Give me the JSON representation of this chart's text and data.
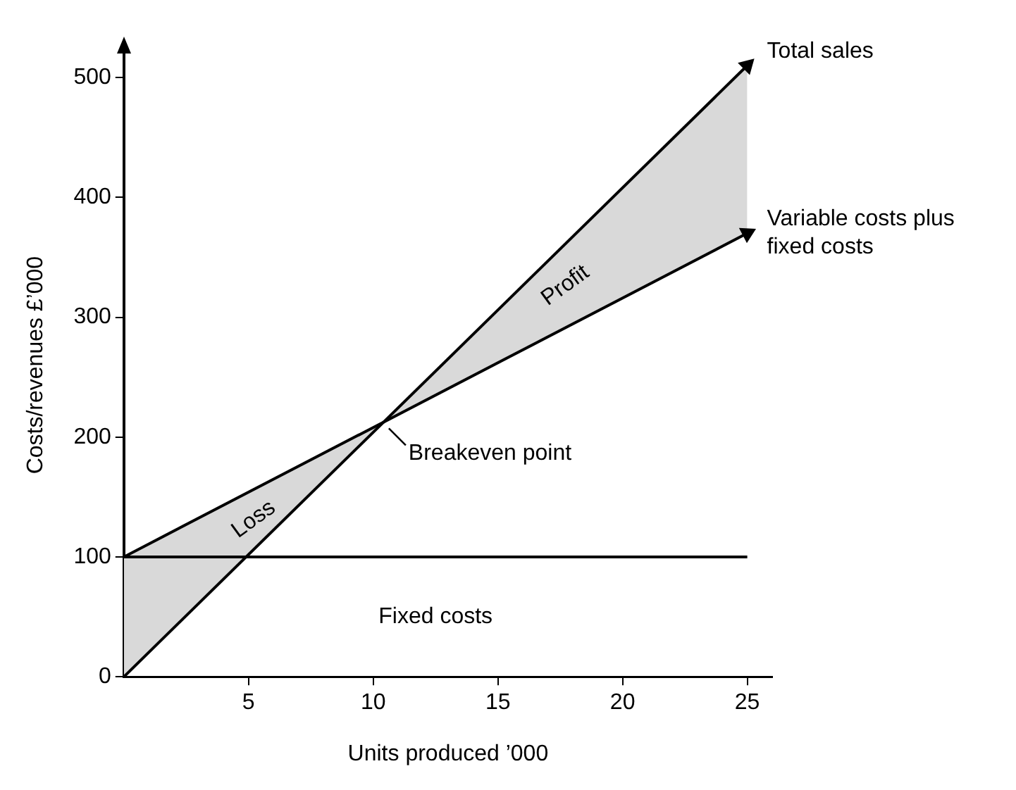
{
  "chart_data": {
    "type": "line",
    "xlabel": "Units produced ’000",
    "ylabel": "Costs/revenues £’000",
    "x": [
      0,
      25
    ],
    "series": [
      {
        "name": "Total sales",
        "color": "#000000",
        "values": [
          0,
          510
        ]
      },
      {
        "name": "Variable costs plus fixed costs",
        "color": "#000000",
        "values": [
          100,
          370
        ]
      },
      {
        "name": "Fixed costs",
        "color": "#000000",
        "values": [
          100,
          100
        ]
      }
    ],
    "xlim": [
      0,
      26
    ],
    "xticks": [
      5,
      10,
      15,
      20,
      25
    ],
    "ylim": [
      0,
      520
    ],
    "yticks": [
      0,
      100,
      200,
      300,
      400,
      500
    ],
    "annotations": [
      "Profit",
      "Loss",
      {
        "text": "Breakeven point",
        "x": 10.4,
        "y": 212
      }
    ],
    "grid": false,
    "legend": "right",
    "line_style": "solid"
  }
}
